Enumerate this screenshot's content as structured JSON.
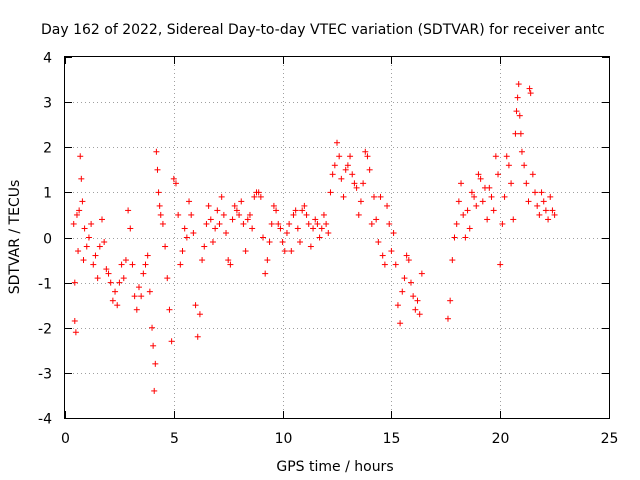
{
  "chart_data": {
    "type": "scatter",
    "title": "Day 162 of 2022, Sidereal Day-to-day VTEC variation (SDTVAR) for receiver antc",
    "xlabel": "GPS time / hours",
    "ylabel": "SDTVAR / TECUs",
    "xlim": [
      0,
      25
    ],
    "ylim": [
      -4,
      4
    ],
    "xticks": [
      0,
      5,
      10,
      15,
      20,
      25
    ],
    "yticks": [
      -4,
      -3,
      -2,
      -1,
      0,
      1,
      2,
      3,
      4
    ],
    "grid": true,
    "marker": "+",
    "color": "#ff0000",
    "series": [
      {
        "name": "SDTVAR",
        "points": [
          [
            0.4,
            0.3
          ],
          [
            0.45,
            -1.0
          ],
          [
            0.45,
            -1.85
          ],
          [
            0.5,
            -2.1
          ],
          [
            0.55,
            0.5
          ],
          [
            0.6,
            -0.3
          ],
          [
            0.65,
            0.6
          ],
          [
            0.7,
            1.8
          ],
          [
            0.75,
            1.3
          ],
          [
            0.8,
            0.8
          ],
          [
            0.85,
            -0.5
          ],
          [
            0.9,
            0.2
          ],
          [
            1.0,
            -0.2
          ],
          [
            1.1,
            0.0
          ],
          [
            1.2,
            0.3
          ],
          [
            1.3,
            -0.6
          ],
          [
            1.4,
            -0.4
          ],
          [
            1.5,
            -0.9
          ],
          [
            1.6,
            -0.2
          ],
          [
            1.7,
            0.4
          ],
          [
            1.8,
            -0.1
          ],
          [
            1.9,
            -0.7
          ],
          [
            2.0,
            -0.8
          ],
          [
            2.1,
            -1.0
          ],
          [
            2.2,
            -1.4
          ],
          [
            2.3,
            -1.2
          ],
          [
            2.4,
            -1.5
          ],
          [
            2.5,
            -1.0
          ],
          [
            2.6,
            -0.6
          ],
          [
            2.7,
            -0.9
          ],
          [
            2.8,
            -0.5
          ],
          [
            2.9,
            0.6
          ],
          [
            3.0,
            0.2
          ],
          [
            3.1,
            -0.6
          ],
          [
            3.2,
            -1.3
          ],
          [
            3.3,
            -1.6
          ],
          [
            3.4,
            -1.1
          ],
          [
            3.5,
            -1.3
          ],
          [
            3.6,
            -0.8
          ],
          [
            3.7,
            -0.6
          ],
          [
            3.8,
            -0.4
          ],
          [
            3.9,
            -1.2
          ],
          [
            4.0,
            -2.0
          ],
          [
            4.05,
            -2.4
          ],
          [
            4.1,
            -3.4
          ],
          [
            4.15,
            -2.8
          ],
          [
            4.2,
            1.9
          ],
          [
            4.25,
            1.5
          ],
          [
            4.3,
            1.0
          ],
          [
            4.35,
            0.7
          ],
          [
            4.4,
            0.5
          ],
          [
            4.5,
            0.3
          ],
          [
            4.6,
            -0.2
          ],
          [
            4.7,
            -0.9
          ],
          [
            4.8,
            -1.6
          ],
          [
            4.9,
            -2.3
          ],
          [
            5.0,
            1.3
          ],
          [
            5.1,
            1.2
          ],
          [
            5.2,
            0.5
          ],
          [
            5.3,
            -0.6
          ],
          [
            5.4,
            -0.3
          ],
          [
            5.5,
            0.2
          ],
          [
            5.6,
            0.0
          ],
          [
            5.7,
            0.8
          ],
          [
            5.8,
            0.5
          ],
          [
            5.9,
            0.1
          ],
          [
            6.0,
            -1.5
          ],
          [
            6.1,
            -2.2
          ],
          [
            6.2,
            -1.7
          ],
          [
            6.3,
            -0.5
          ],
          [
            6.4,
            -0.2
          ],
          [
            6.5,
            0.3
          ],
          [
            6.6,
            0.7
          ],
          [
            6.7,
            0.4
          ],
          [
            6.8,
            -0.1
          ],
          [
            6.9,
            0.2
          ],
          [
            7.0,
            0.6
          ],
          [
            7.1,
            0.3
          ],
          [
            7.2,
            0.9
          ],
          [
            7.3,
            0.5
          ],
          [
            7.4,
            0.1
          ],
          [
            7.5,
            -0.5
          ],
          [
            7.6,
            -0.6
          ],
          [
            7.7,
            0.4
          ],
          [
            7.8,
            0.7
          ],
          [
            7.9,
            0.6
          ],
          [
            8.0,
            0.5
          ],
          [
            8.1,
            0.8
          ],
          [
            8.2,
            0.3
          ],
          [
            8.3,
            -0.3
          ],
          [
            8.4,
            0.4
          ],
          [
            8.5,
            0.5
          ],
          [
            8.6,
            0.2
          ],
          [
            8.7,
            0.9
          ],
          [
            8.8,
            1.0
          ],
          [
            8.9,
            1.0
          ],
          [
            9.0,
            0.9
          ],
          [
            9.1,
            0.0
          ],
          [
            9.2,
            -0.8
          ],
          [
            9.3,
            -0.5
          ],
          [
            9.4,
            -0.1
          ],
          [
            9.5,
            0.3
          ],
          [
            9.6,
            0.7
          ],
          [
            9.7,
            0.6
          ],
          [
            9.8,
            0.3
          ],
          [
            9.9,
            0.2
          ],
          [
            10.0,
            -0.1
          ],
          [
            10.1,
            -0.3
          ],
          [
            10.2,
            0.1
          ],
          [
            10.3,
            0.3
          ],
          [
            10.4,
            -0.3
          ],
          [
            10.5,
            0.5
          ],
          [
            10.6,
            0.6
          ],
          [
            10.7,
            0.2
          ],
          [
            10.8,
            -0.1
          ],
          [
            10.9,
            0.6
          ],
          [
            11.0,
            0.7
          ],
          [
            11.1,
            0.5
          ],
          [
            11.2,
            0.3
          ],
          [
            11.3,
            -0.2
          ],
          [
            11.4,
            0.2
          ],
          [
            11.5,
            0.4
          ],
          [
            11.6,
            0.3
          ],
          [
            11.7,
            0.0
          ],
          [
            11.8,
            0.2
          ],
          [
            11.9,
            0.5
          ],
          [
            12.0,
            0.3
          ],
          [
            12.1,
            0.1
          ],
          [
            12.2,
            1.0
          ],
          [
            12.3,
            1.4
          ],
          [
            12.4,
            1.6
          ],
          [
            12.5,
            2.1
          ],
          [
            12.6,
            1.8
          ],
          [
            12.7,
            1.3
          ],
          [
            12.8,
            0.9
          ],
          [
            12.9,
            1.5
          ],
          [
            13.0,
            1.6
          ],
          [
            13.1,
            1.8
          ],
          [
            13.2,
            1.4
          ],
          [
            13.3,
            1.2
          ],
          [
            13.4,
            1.1
          ],
          [
            13.5,
            0.5
          ],
          [
            13.6,
            0.8
          ],
          [
            13.7,
            1.2
          ],
          [
            13.8,
            1.9
          ],
          [
            13.9,
            1.8
          ],
          [
            14.0,
            1.5
          ],
          [
            14.1,
            0.3
          ],
          [
            14.2,
            0.9
          ],
          [
            14.3,
            0.4
          ],
          [
            14.4,
            -0.1
          ],
          [
            14.5,
            0.9
          ],
          [
            14.6,
            -0.4
          ],
          [
            14.7,
            -0.6
          ],
          [
            14.8,
            0.7
          ],
          [
            14.9,
            0.3
          ],
          [
            15.0,
            -0.3
          ],
          [
            15.1,
            0.1
          ],
          [
            15.2,
            -0.6
          ],
          [
            15.3,
            -1.5
          ],
          [
            15.4,
            -1.9
          ],
          [
            15.5,
            -1.2
          ],
          [
            15.6,
            -0.9
          ],
          [
            15.7,
            -0.4
          ],
          [
            15.8,
            -0.5
          ],
          [
            15.9,
            -1.0
          ],
          [
            16.0,
            -1.3
          ],
          [
            16.1,
            -1.6
          ],
          [
            16.2,
            -1.4
          ],
          [
            16.3,
            -1.7
          ],
          [
            16.4,
            -0.8
          ],
          [
            17.6,
            -1.8
          ],
          [
            17.7,
            -1.4
          ],
          [
            17.8,
            -0.5
          ],
          [
            17.9,
            0.0
          ],
          [
            18.0,
            0.3
          ],
          [
            18.1,
            0.8
          ],
          [
            18.2,
            1.2
          ],
          [
            18.3,
            0.5
          ],
          [
            18.4,
            0.0
          ],
          [
            18.5,
            0.6
          ],
          [
            18.6,
            0.2
          ],
          [
            18.7,
            1.0
          ],
          [
            18.8,
            0.9
          ],
          [
            18.9,
            0.7
          ],
          [
            19.0,
            1.4
          ],
          [
            19.1,
            1.3
          ],
          [
            19.2,
            0.8
          ],
          [
            19.3,
            1.1
          ],
          [
            19.4,
            0.4
          ],
          [
            19.5,
            1.1
          ],
          [
            19.6,
            0.9
          ],
          [
            19.7,
            0.6
          ],
          [
            19.8,
            1.8
          ],
          [
            19.9,
            1.4
          ],
          [
            20.0,
            -0.6
          ],
          [
            20.1,
            0.3
          ],
          [
            20.2,
            0.9
          ],
          [
            20.3,
            1.8
          ],
          [
            20.4,
            1.6
          ],
          [
            20.5,
            1.2
          ],
          [
            20.6,
            0.4
          ],
          [
            20.7,
            2.3
          ],
          [
            20.75,
            2.8
          ],
          [
            20.8,
            3.1
          ],
          [
            20.85,
            3.4
          ],
          [
            20.9,
            2.7
          ],
          [
            20.95,
            2.3
          ],
          [
            21.0,
            1.9
          ],
          [
            21.1,
            1.6
          ],
          [
            21.2,
            1.2
          ],
          [
            21.3,
            0.8
          ],
          [
            21.35,
            3.3
          ],
          [
            21.4,
            3.2
          ],
          [
            21.5,
            1.4
          ],
          [
            21.6,
            1.0
          ],
          [
            21.7,
            0.7
          ],
          [
            21.8,
            0.5
          ],
          [
            21.9,
            1.0
          ],
          [
            22.0,
            0.8
          ],
          [
            22.1,
            0.6
          ],
          [
            22.2,
            0.4
          ],
          [
            22.3,
            0.9
          ],
          [
            22.4,
            0.6
          ],
          [
            22.5,
            0.5
          ]
        ]
      }
    ]
  }
}
